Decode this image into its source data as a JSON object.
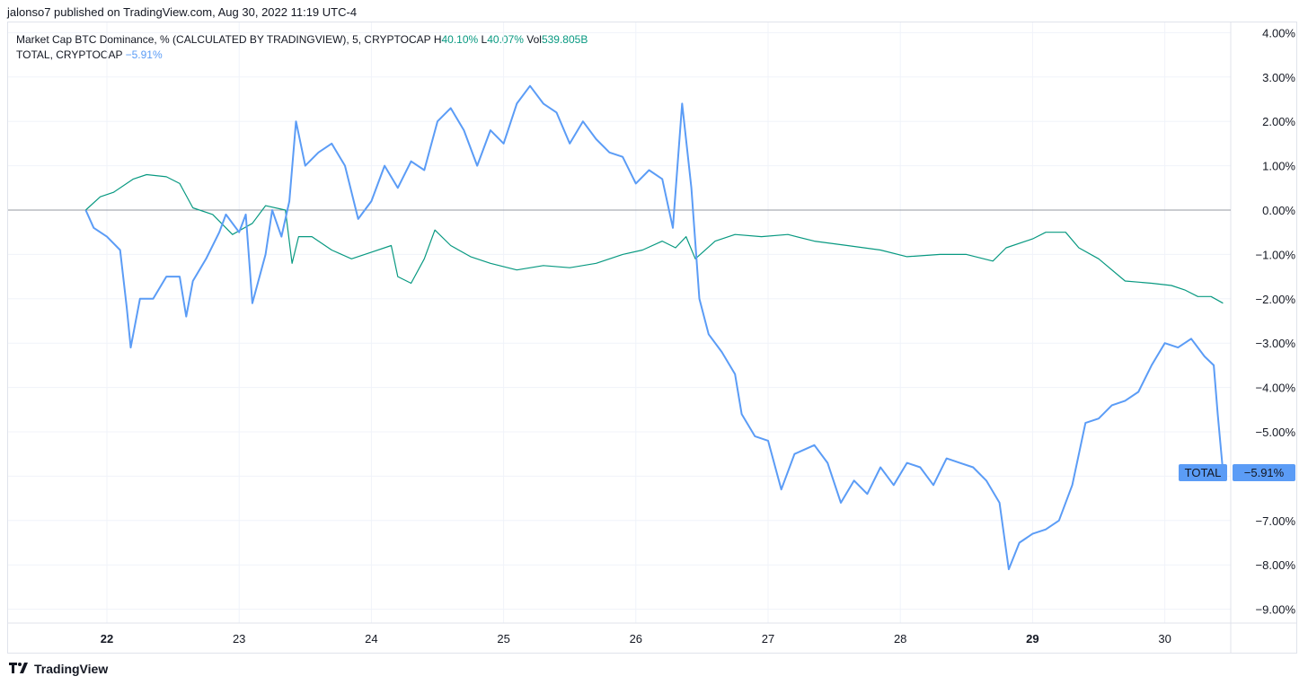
{
  "header": {
    "published_by": "jalonso7 published on TradingView.com, Aug 30, 2022 11:19 UTC-4"
  },
  "legend": {
    "series1": {
      "title": "Market Cap BTC Dominance, % (CALCULATED BY TRADINGVIEW), 5, CRYPTOCAP",
      "h_label": "H",
      "h_value": "40.10%",
      "l_label": "L",
      "l_value": "40.07%",
      "vol_label": "Vol",
      "vol_value": "539.805B"
    },
    "series2": {
      "title": "TOTAL, CRYPTOCAP",
      "value": "−5.91%"
    }
  },
  "footer": {
    "brand": "TradingView",
    "logo_icon": "tradingview-logo-icon"
  },
  "colors": {
    "btc_dominance": "#089981",
    "total": "#5b9cf6",
    "grid": "#f0f3fa",
    "zero_line": "#9598a1",
    "text": "#131722"
  },
  "chart_data": {
    "type": "line",
    "x_axis": {
      "tick_labels": [
        "22",
        "23",
        "24",
        "25",
        "26",
        "27",
        "28",
        "29",
        "30"
      ],
      "bold_ticks": [
        "22",
        "29"
      ],
      "unit": "day of Aug 2022"
    },
    "y_axis": {
      "tick_labels": [
        "4.00%",
        "3.00%",
        "2.00%",
        "1.00%",
        "0.00%",
        "−1.00%",
        "−2.00%",
        "−3.00%",
        "−4.00%",
        "−5.00%",
        "−6.00%",
        "−7.00%",
        "−8.00%",
        "−9.00%"
      ],
      "tick_values": [
        4,
        3,
        2,
        1,
        0,
        -1,
        -2,
        -3,
        -4,
        -5,
        -6,
        -7,
        -8,
        -9
      ],
      "ylim": [
        -9.2,
        4.1
      ],
      "position": "right",
      "unit": "%"
    },
    "grid": true,
    "series": [
      {
        "name": "Market Cap BTC Dominance",
        "color": "#089981",
        "points": [
          [
            21.84,
            0.0
          ],
          [
            21.95,
            0.3
          ],
          [
            22.05,
            0.4
          ],
          [
            22.2,
            0.7
          ],
          [
            22.3,
            0.8
          ],
          [
            22.45,
            0.75
          ],
          [
            22.55,
            0.6
          ],
          [
            22.65,
            0.05
          ],
          [
            22.8,
            -0.1
          ],
          [
            22.95,
            -0.55
          ],
          [
            23.1,
            -0.3
          ],
          [
            23.2,
            0.1
          ],
          [
            23.35,
            0.0
          ],
          [
            23.4,
            -1.2
          ],
          [
            23.45,
            -0.6
          ],
          [
            23.55,
            -0.6
          ],
          [
            23.7,
            -0.9
          ],
          [
            23.85,
            -1.1
          ],
          [
            24.0,
            -0.95
          ],
          [
            24.15,
            -0.8
          ],
          [
            24.2,
            -1.5
          ],
          [
            24.3,
            -1.65
          ],
          [
            24.4,
            -1.1
          ],
          [
            24.48,
            -0.45
          ],
          [
            24.6,
            -0.8
          ],
          [
            24.75,
            -1.05
          ],
          [
            24.9,
            -1.2
          ],
          [
            25.1,
            -1.35
          ],
          [
            25.3,
            -1.25
          ],
          [
            25.5,
            -1.3
          ],
          [
            25.7,
            -1.2
          ],
          [
            25.9,
            -1.0
          ],
          [
            26.05,
            -0.9
          ],
          [
            26.2,
            -0.7
          ],
          [
            26.3,
            -0.85
          ],
          [
            26.38,
            -0.6
          ],
          [
            26.45,
            -1.1
          ],
          [
            26.6,
            -0.7
          ],
          [
            26.75,
            -0.55
          ],
          [
            26.95,
            -0.6
          ],
          [
            27.15,
            -0.55
          ],
          [
            27.35,
            -0.7
          ],
          [
            27.6,
            -0.8
          ],
          [
            27.85,
            -0.9
          ],
          [
            28.05,
            -1.05
          ],
          [
            28.3,
            -1.0
          ],
          [
            28.5,
            -1.0
          ],
          [
            28.7,
            -1.15
          ],
          [
            28.8,
            -0.85
          ],
          [
            29.0,
            -0.65
          ],
          [
            29.1,
            -0.5
          ],
          [
            29.25,
            -0.5
          ],
          [
            29.35,
            -0.85
          ],
          [
            29.5,
            -1.1
          ],
          [
            29.7,
            -1.6
          ],
          [
            29.9,
            -1.65
          ],
          [
            30.05,
            -1.7
          ],
          [
            30.15,
            -1.8
          ],
          [
            30.25,
            -1.95
          ],
          [
            30.35,
            -1.95
          ],
          [
            30.44,
            -2.1
          ]
        ]
      },
      {
        "name": "TOTAL",
        "color": "#5b9cf6",
        "points": [
          [
            21.84,
            0.0
          ],
          [
            21.9,
            -0.4
          ],
          [
            22.0,
            -0.6
          ],
          [
            22.1,
            -0.9
          ],
          [
            22.15,
            -2.2
          ],
          [
            22.18,
            -3.1
          ],
          [
            22.25,
            -2.0
          ],
          [
            22.35,
            -2.0
          ],
          [
            22.45,
            -1.5
          ],
          [
            22.55,
            -1.5
          ],
          [
            22.6,
            -2.4
          ],
          [
            22.65,
            -1.6
          ],
          [
            22.75,
            -1.1
          ],
          [
            22.85,
            -0.5
          ],
          [
            22.9,
            -0.1
          ],
          [
            23.0,
            -0.5
          ],
          [
            23.05,
            -0.1
          ],
          [
            23.1,
            -2.1
          ],
          [
            23.2,
            -1.0
          ],
          [
            23.25,
            0.0
          ],
          [
            23.32,
            -0.6
          ],
          [
            23.38,
            0.2
          ],
          [
            23.43,
            2.0
          ],
          [
            23.5,
            1.0
          ],
          [
            23.6,
            1.3
          ],
          [
            23.7,
            1.5
          ],
          [
            23.8,
            1.0
          ],
          [
            23.9,
            -0.2
          ],
          [
            24.0,
            0.2
          ],
          [
            24.1,
            1.0
          ],
          [
            24.2,
            0.5
          ],
          [
            24.3,
            1.1
          ],
          [
            24.4,
            0.9
          ],
          [
            24.5,
            2.0
          ],
          [
            24.6,
            2.3
          ],
          [
            24.7,
            1.8
          ],
          [
            24.8,
            1.0
          ],
          [
            24.9,
            1.8
          ],
          [
            25.0,
            1.5
          ],
          [
            25.1,
            2.4
          ],
          [
            25.2,
            2.8
          ],
          [
            25.3,
            2.4
          ],
          [
            25.4,
            2.2
          ],
          [
            25.5,
            1.5
          ],
          [
            25.6,
            2.0
          ],
          [
            25.7,
            1.6
          ],
          [
            25.8,
            1.3
          ],
          [
            25.9,
            1.2
          ],
          [
            26.0,
            0.6
          ],
          [
            26.1,
            0.9
          ],
          [
            26.2,
            0.7
          ],
          [
            26.28,
            -0.4
          ],
          [
            26.35,
            2.4
          ],
          [
            26.42,
            0.5
          ],
          [
            26.48,
            -2.0
          ],
          [
            26.55,
            -2.8
          ],
          [
            26.65,
            -3.2
          ],
          [
            26.75,
            -3.7
          ],
          [
            26.8,
            -4.6
          ],
          [
            26.9,
            -5.1
          ],
          [
            27.0,
            -5.2
          ],
          [
            27.1,
            -6.3
          ],
          [
            27.2,
            -5.5
          ],
          [
            27.35,
            -5.3
          ],
          [
            27.45,
            -5.7
          ],
          [
            27.55,
            -6.6
          ],
          [
            27.65,
            -6.1
          ],
          [
            27.75,
            -6.4
          ],
          [
            27.85,
            -5.8
          ],
          [
            27.95,
            -6.2
          ],
          [
            28.05,
            -5.7
          ],
          [
            28.15,
            -5.8
          ],
          [
            28.25,
            -6.2
          ],
          [
            28.35,
            -5.6
          ],
          [
            28.45,
            -5.7
          ],
          [
            28.55,
            -5.8
          ],
          [
            28.65,
            -6.1
          ],
          [
            28.75,
            -6.6
          ],
          [
            28.82,
            -8.1
          ],
          [
            28.9,
            -7.5
          ],
          [
            29.0,
            -7.3
          ],
          [
            29.1,
            -7.2
          ],
          [
            29.2,
            -7.0
          ],
          [
            29.3,
            -6.2
          ],
          [
            29.4,
            -4.8
          ],
          [
            29.5,
            -4.7
          ],
          [
            29.6,
            -4.4
          ],
          [
            29.7,
            -4.3
          ],
          [
            29.8,
            -4.1
          ],
          [
            29.9,
            -3.5
          ],
          [
            30.0,
            -3.0
          ],
          [
            30.1,
            -3.1
          ],
          [
            30.2,
            -2.9
          ],
          [
            30.3,
            -3.3
          ],
          [
            30.37,
            -3.5
          ],
          [
            30.4,
            -4.6
          ],
          [
            30.44,
            -5.91
          ]
        ]
      }
    ],
    "last_value_label": {
      "series": "TOTAL",
      "tag": "TOTAL",
      "value": "−5.91%"
    },
    "legend_position": "top-left"
  }
}
